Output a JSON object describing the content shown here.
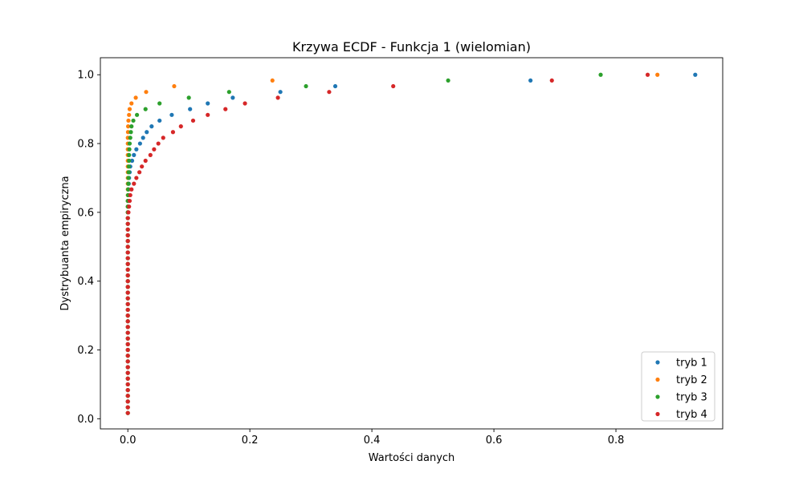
{
  "chart_data": {
    "type": "scatter",
    "title": "Krzywa ECDF - Funkcja 1 (wielomian)",
    "xlabel": "Wartości danych",
    "ylabel": "Dystrybuanta empiryczna",
    "xlim": [
      -0.045,
      0.975
    ],
    "ylim": [
      -0.0295,
      1.0495
    ],
    "xticks": [
      0.0,
      0.2,
      0.4,
      0.6,
      0.8
    ],
    "xtick_labels": [
      "0.0",
      "0.2",
      "0.4",
      "0.6",
      "0.8"
    ],
    "yticks": [
      0.0,
      0.2,
      0.4,
      0.6,
      0.8,
      1.0
    ],
    "ytick_labels": [
      "0.0",
      "0.2",
      "0.4",
      "0.6",
      "0.8",
      "1.0"
    ],
    "grid": false,
    "legend_position": "lower-right",
    "y": [
      0.0167,
      0.0333,
      0.05,
      0.0667,
      0.0833,
      0.1,
      0.1167,
      0.1333,
      0.15,
      0.1667,
      0.1833,
      0.2,
      0.2167,
      0.2333,
      0.25,
      0.2667,
      0.2833,
      0.3,
      0.3167,
      0.3333,
      0.35,
      0.3667,
      0.3833,
      0.4,
      0.4167,
      0.4333,
      0.45,
      0.4667,
      0.4833,
      0.5,
      0.5167,
      0.5333,
      0.55,
      0.5667,
      0.5833,
      0.6,
      0.6167,
      0.6333,
      0.65,
      0.6667,
      0.6833,
      0.7,
      0.7167,
      0.7333,
      0.75,
      0.7667,
      0.7833,
      0.8,
      0.8167,
      0.8333,
      0.85,
      0.8667,
      0.8833,
      0.9,
      0.9167,
      0.9333,
      0.95,
      0.9667,
      0.9833,
      1.0
    ],
    "series": [
      {
        "name": "tryb 1",
        "color": "#1f77b4",
        "x": [
          0.0,
          0.0,
          0.0,
          0.0,
          0.0,
          0.0,
          0.0,
          0.0,
          0.0,
          0.0,
          0.0,
          0.0,
          0.0,
          0.0,
          0.0,
          0.0,
          0.0,
          0.0,
          0.0,
          0.0,
          0.0,
          0.0,
          0.0,
          0.0,
          0.0,
          0.0,
          0.0,
          0.0,
          0.0,
          0.0,
          0.0,
          0.0,
          0.0,
          0.0,
          0.0,
          0.0,
          0.0,
          0.0,
          0.0005,
          0.001,
          0.0015,
          0.002,
          0.003,
          0.004,
          0.007,
          0.01,
          0.014,
          0.02,
          0.025,
          0.031,
          0.039,
          0.052,
          0.072,
          0.102,
          0.131,
          0.172,
          0.25,
          0.34,
          0.66,
          0.93
        ]
      },
      {
        "name": "tryb 2",
        "color": "#ff7f0e",
        "x": [
          0.0,
          0.0,
          0.0,
          0.0,
          0.0,
          0.0,
          0.0,
          0.0,
          0.0,
          0.0,
          0.0,
          0.0,
          0.0,
          0.0,
          0.0,
          0.0,
          0.0,
          0.0,
          0.0,
          0.0,
          0.0,
          0.0,
          0.0,
          0.0,
          0.0,
          0.0,
          0.0,
          0.0,
          0.0,
          0.0,
          0.0,
          0.0,
          0.0,
          0.0,
          0.0,
          0.0,
          0.0,
          0.0,
          0.0,
          0.0,
          0.0,
          0.0,
          0.0,
          0.0,
          0.0,
          0.0,
          0.0,
          0.0,
          0.0,
          0.0003,
          0.0005,
          0.001,
          0.002,
          0.003,
          0.006,
          0.013,
          0.03,
          0.076,
          0.237,
          0.868
        ]
      },
      {
        "name": "tryb 3",
        "color": "#2ca02c",
        "x": [
          0.0,
          0.0,
          0.0,
          0.0,
          0.0,
          0.0,
          0.0,
          0.0,
          0.0,
          0.0,
          0.0,
          0.0,
          0.0,
          0.0,
          0.0,
          0.0,
          0.0,
          0.0,
          0.0,
          0.0,
          0.0,
          0.0,
          0.0,
          0.0,
          0.0,
          0.0,
          0.0,
          0.0,
          0.0,
          0.0,
          0.0,
          0.0,
          0.0,
          0.0,
          0.0,
          0.0,
          0.0,
          0.0,
          0.0003,
          0.0005,
          0.0008,
          0.001,
          0.0013,
          0.0015,
          0.002,
          0.002,
          0.0025,
          0.003,
          0.004,
          0.005,
          0.006,
          0.009,
          0.015,
          0.029,
          0.052,
          0.1,
          0.166,
          0.292,
          0.525,
          0.775
        ]
      },
      {
        "name": "tryb 4",
        "color": "#d62728",
        "x": [
          0.0,
          0.0,
          0.0,
          0.0,
          0.0,
          0.0,
          0.0,
          0.0,
          0.0,
          0.0,
          0.0,
          0.0,
          0.0,
          0.0,
          0.0,
          0.0,
          0.0,
          0.0,
          0.0,
          0.0,
          0.0,
          0.0,
          0.0,
          0.0,
          0.0,
          0.0,
          0.0,
          0.0,
          0.0,
          0.0,
          0.0,
          0.0,
          0.0,
          0.0,
          0.0,
          0.001,
          0.002,
          0.003,
          0.004,
          0.006,
          0.01,
          0.014,
          0.019,
          0.023,
          0.029,
          0.037,
          0.043,
          0.05,
          0.058,
          0.074,
          0.087,
          0.107,
          0.131,
          0.16,
          0.192,
          0.246,
          0.33,
          0.435,
          0.695,
          0.852
        ]
      }
    ]
  }
}
